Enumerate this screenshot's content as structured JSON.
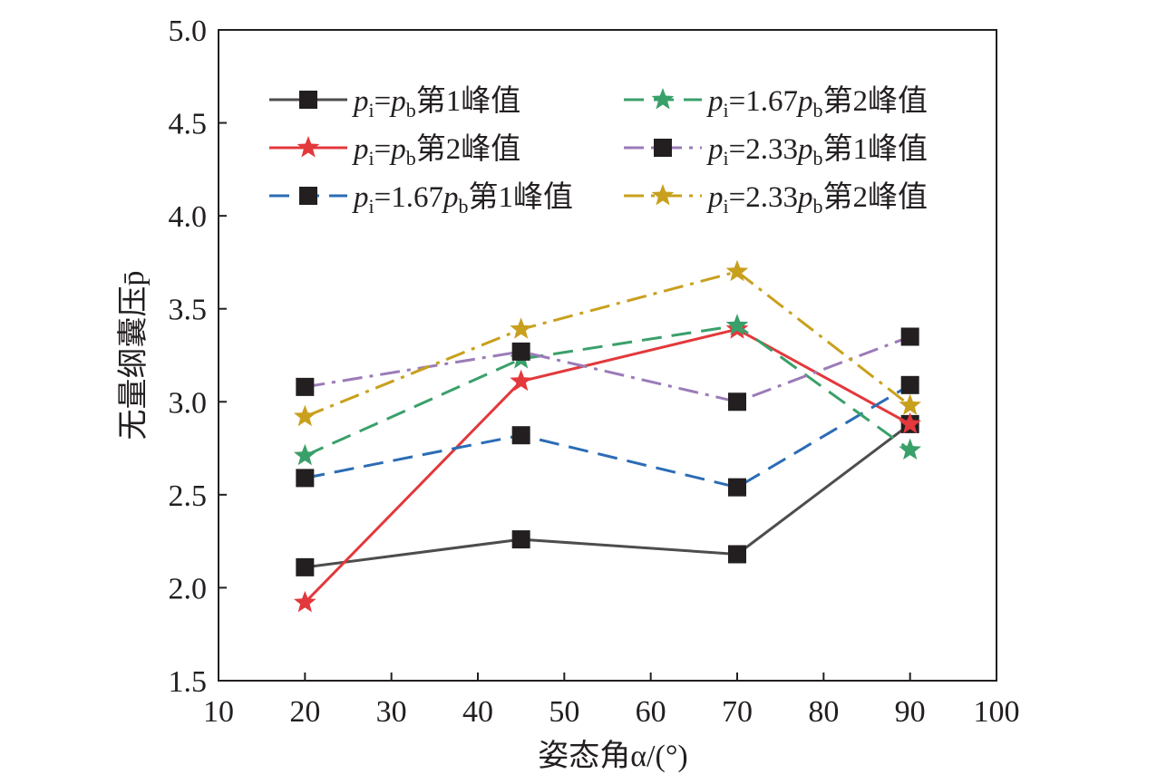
{
  "chart_data": {
    "type": "line",
    "title": "",
    "xlabel": "姿态角α/(°)",
    "ylabel": "无量纲囊压p̄",
    "xlim": [
      10,
      100
    ],
    "ylim": [
      1.5,
      5.0
    ],
    "xticks": [
      10,
      20,
      30,
      40,
      50,
      60,
      70,
      80,
      90,
      100
    ],
    "yticks": [
      1.5,
      2.0,
      2.5,
      3.0,
      3.5,
      4.0,
      4.5,
      5.0
    ],
    "xtick_labels": [
      "10",
      "20",
      "30",
      "40",
      "50",
      "60",
      "70",
      "80",
      "90",
      "100"
    ],
    "ytick_labels": [
      "1.5",
      "2.0",
      "2.5",
      "3.0",
      "3.5",
      "4.0",
      "4.5",
      "5.0"
    ],
    "x": [
      20,
      45,
      70,
      90
    ],
    "grid": false,
    "legend_position": "top",
    "series": [
      {
        "name": "pi=pb第1峰值",
        "legend": {
          "p1": "p",
          "s1": "i",
          "mid": "=",
          "p2": "p",
          "s2": "b",
          "tail": "第1峰值"
        },
        "values": [
          2.11,
          2.26,
          2.18,
          2.88
        ],
        "color": "#4d4d4d",
        "marker": "square",
        "dash": "solid"
      },
      {
        "name": "pi=pb第2峰值",
        "legend": {
          "p1": "p",
          "s1": "i",
          "mid": "=",
          "p2": "p",
          "s2": "b",
          "tail": "第2峰值"
        },
        "values": [
          1.92,
          3.11,
          3.39,
          2.88
        ],
        "color": "#e3383c",
        "marker": "star",
        "dash": "solid"
      },
      {
        "name": "pi=1.67pb第1峰值",
        "legend": {
          "p1": "p",
          "s1": "i",
          "mid": "=1.67",
          "p2": "p",
          "s2": "b",
          "tail": "第1峰值"
        },
        "values": [
          2.59,
          2.82,
          2.54,
          3.09
        ],
        "color": "#2b6cb5",
        "marker": "square",
        "dash": "dash"
      },
      {
        "name": "pi=1.67pb第2峰值",
        "legend": {
          "p1": "p",
          "s1": "i",
          "mid": "=1.67",
          "p2": "p",
          "s2": "b",
          "tail": "第2峰值"
        },
        "values": [
          2.71,
          3.23,
          3.41,
          2.74
        ],
        "color": "#3aa06a",
        "marker": "star",
        "dash": "dash"
      },
      {
        "name": "pi=2.33pb第1峰值",
        "legend": {
          "p1": "p",
          "s1": "i",
          "mid": "=2.33",
          "p2": "p",
          "s2": "b",
          "tail": "第1峰值"
        },
        "values": [
          3.08,
          3.27,
          3.0,
          3.35
        ],
        "color": "#9b7bb8",
        "marker": "square",
        "dash": "dashdot"
      },
      {
        "name": "pi=2.33pb第2峰值",
        "legend": {
          "p1": "p",
          "s1": "i",
          "mid": "=2.33",
          "p2": "p",
          "s2": "b",
          "tail": "第2峰值"
        },
        "values": [
          2.92,
          3.39,
          3.7,
          2.98
        ],
        "color": "#c9a01e",
        "marker": "star",
        "dash": "dashdot"
      }
    ],
    "marker_fill": "#231f20"
  }
}
